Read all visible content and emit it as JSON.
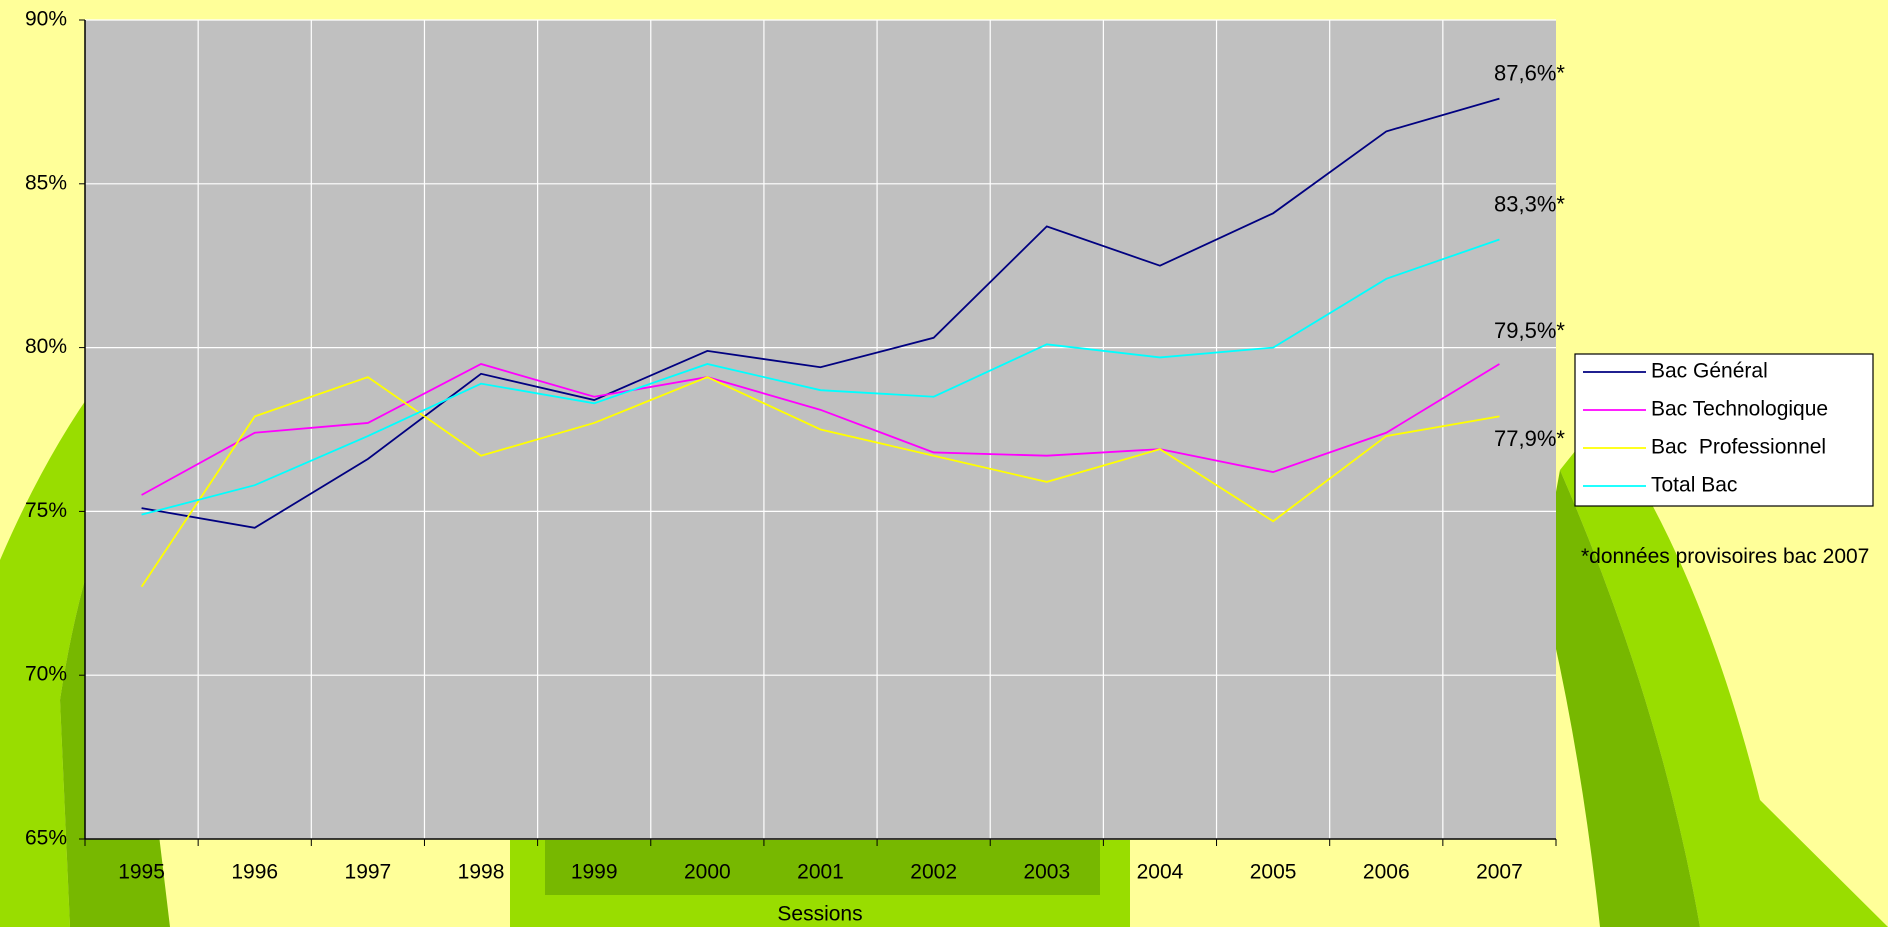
{
  "chart_data": {
    "type": "line",
    "x_label": "Sessions",
    "categories": [
      "1995",
      "1996",
      "1997",
      "1998",
      "1999",
      "2000",
      "2001",
      "2002",
      "2003",
      "2004",
      "2005",
      "2006",
      "2007"
    ],
    "series": [
      {
        "name": "Bac Général",
        "color": "#000080",
        "values": [
          75.1,
          74.5,
          76.6,
          79.2,
          78.4,
          79.9,
          79.4,
          80.3,
          83.7,
          82.5,
          84.1,
          86.6,
          87.6
        ],
        "value_labels": [
          null,
          null,
          null,
          null,
          null,
          null,
          null,
          null,
          null,
          null,
          null,
          null,
          "87,6%*"
        ]
      },
      {
        "name": "Bac Technologique",
        "color": "#ff00ff",
        "values": [
          75.5,
          77.4,
          77.7,
          79.5,
          78.5,
          79.1,
          78.1,
          76.8,
          76.7,
          76.9,
          76.2,
          77.4,
          79.5
        ],
        "value_labels": [
          null,
          null,
          null,
          null,
          null,
          null,
          null,
          null,
          null,
          null,
          null,
          null,
          "79,5%*"
        ]
      },
      {
        "name": "Bac  Professionnel",
        "color": "#ffff00",
        "values": [
          72.7,
          77.9,
          79.1,
          76.7,
          77.7,
          79.1,
          77.5,
          76.7,
          75.9,
          76.9,
          74.7,
          77.3,
          77.9
        ],
        "value_labels": [
          null,
          null,
          null,
          null,
          null,
          null,
          null,
          null,
          null,
          null,
          null,
          null,
          "77,9%*"
        ]
      },
      {
        "name": "Total Bac",
        "color": "#00ffff",
        "values": [
          74.9,
          75.8,
          77.3,
          78.9,
          78.3,
          79.5,
          78.7,
          78.5,
          80.1,
          79.7,
          80.0,
          82.1,
          83.3
        ],
        "value_labels": [
          null,
          null,
          null,
          null,
          null,
          null,
          null,
          null,
          null,
          null,
          null,
          null,
          "83,3%*"
        ]
      }
    ],
    "ylim": [
      65,
      90
    ],
    "yticks": [
      {
        "value": 65,
        "label": "65%"
      },
      {
        "value": 70,
        "label": "70%"
      },
      {
        "value": 75,
        "label": "75%"
      },
      {
        "value": 80,
        "label": "80%"
      },
      {
        "value": 85,
        "label": "85%"
      },
      {
        "value": 90,
        "label": "90%"
      }
    ],
    "grid": true,
    "legend": "right",
    "footnote": "*données provisoires bac 2007"
  }
}
